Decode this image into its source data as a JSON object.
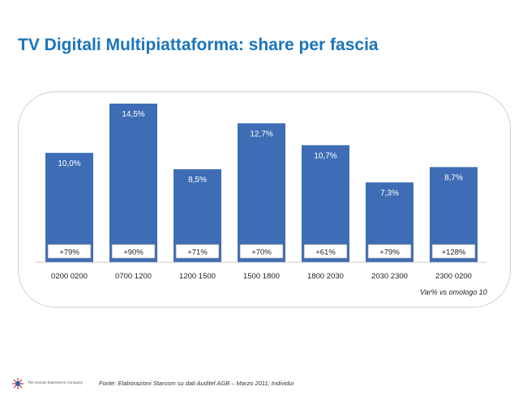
{
  "title": "TV Digitali Multipiattaforma: share per fascia",
  "note": "Var% vs omologo 10",
  "footer": {
    "tagline": "The Human Experience Company",
    "source": "Fonte: Elaborazioni Starcom su dati Auditel AGB – Marzo 2011; Individui"
  },
  "chart_data": {
    "type": "bar",
    "title": "TV Digitali Multipiattaforma: share per fascia",
    "xlabel": "",
    "ylabel": "",
    "categories": [
      "0200 0200",
      "0700 1200",
      "1200 1500",
      "1500 1800",
      "1800 2030",
      "2030 2300",
      "2300 0200"
    ],
    "values": [
      10.0,
      14.5,
      8.5,
      12.7,
      10.7,
      7.3,
      8.7
    ],
    "value_labels": [
      "10,0%",
      "14,5%",
      "8,5%",
      "12,7%",
      "10,7%",
      "7,3%",
      "8,7%"
    ],
    "var_labels": [
      "+79%",
      "+90%",
      "+71%",
      "+70%",
      "+61%",
      "+79%",
      "+128%"
    ],
    "ylim": [
      0,
      15
    ],
    "bar_color": "#3e6db5",
    "grid": false
  }
}
